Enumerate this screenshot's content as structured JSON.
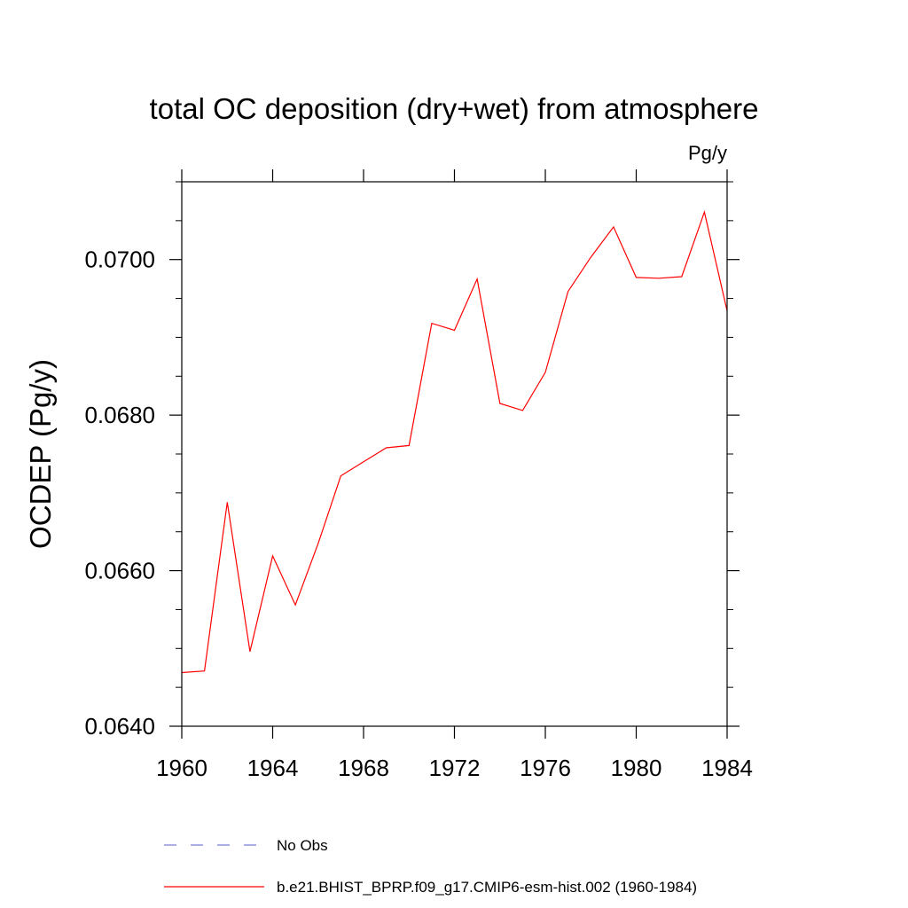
{
  "chart_data": {
    "type": "line",
    "title": "total OC deposition (dry+wet) from atmosphere",
    "units_label": "Pg/y",
    "ylabel": "OCDEP  (Pg/y)",
    "xlabel": "",
    "xlim": [
      1960,
      1984
    ],
    "ylim": [
      0.064,
      0.071
    ],
    "x_ticks": [
      1960,
      1964,
      1968,
      1972,
      1976,
      1980,
      1984
    ],
    "x_tick_labels": [
      "1960",
      "1964",
      "1968",
      "1972",
      "1976",
      "1980",
      "1984"
    ],
    "y_ticks": [
      0.064,
      0.066,
      0.068,
      0.07
    ],
    "y_tick_labels": [
      "0.0640",
      "0.0660",
      "0.0680",
      "0.0700"
    ],
    "grid": false,
    "legend_position": "bottom",
    "series": [
      {
        "name": "b.e21.BHIST_BPRP.f09_g17.CMIP6-esm-hist.002 (1960-1984)",
        "color": "#ff0000",
        "style": "solid",
        "x": [
          1960,
          1961,
          1962,
          1963,
          1964,
          1965,
          1966,
          1967,
          1968,
          1969,
          1970,
          1971,
          1972,
          1973,
          1974,
          1975,
          1976,
          1977,
          1978,
          1979,
          1980,
          1981,
          1982,
          1983,
          1984
        ],
        "y": [
          0.06469,
          0.06471,
          0.06688,
          0.06496,
          0.06619,
          0.06556,
          0.06635,
          0.06722,
          0.0674,
          0.06758,
          0.06761,
          0.06918,
          0.06909,
          0.06975,
          0.06815,
          0.06806,
          0.06855,
          0.06959,
          0.07003,
          0.07042,
          0.06977,
          0.06976,
          0.06978,
          0.07061,
          0.06934
        ]
      },
      {
        "name": "No Obs",
        "color": "#7b7bd6",
        "style": "dashed",
        "x": [],
        "y": []
      }
    ]
  }
}
